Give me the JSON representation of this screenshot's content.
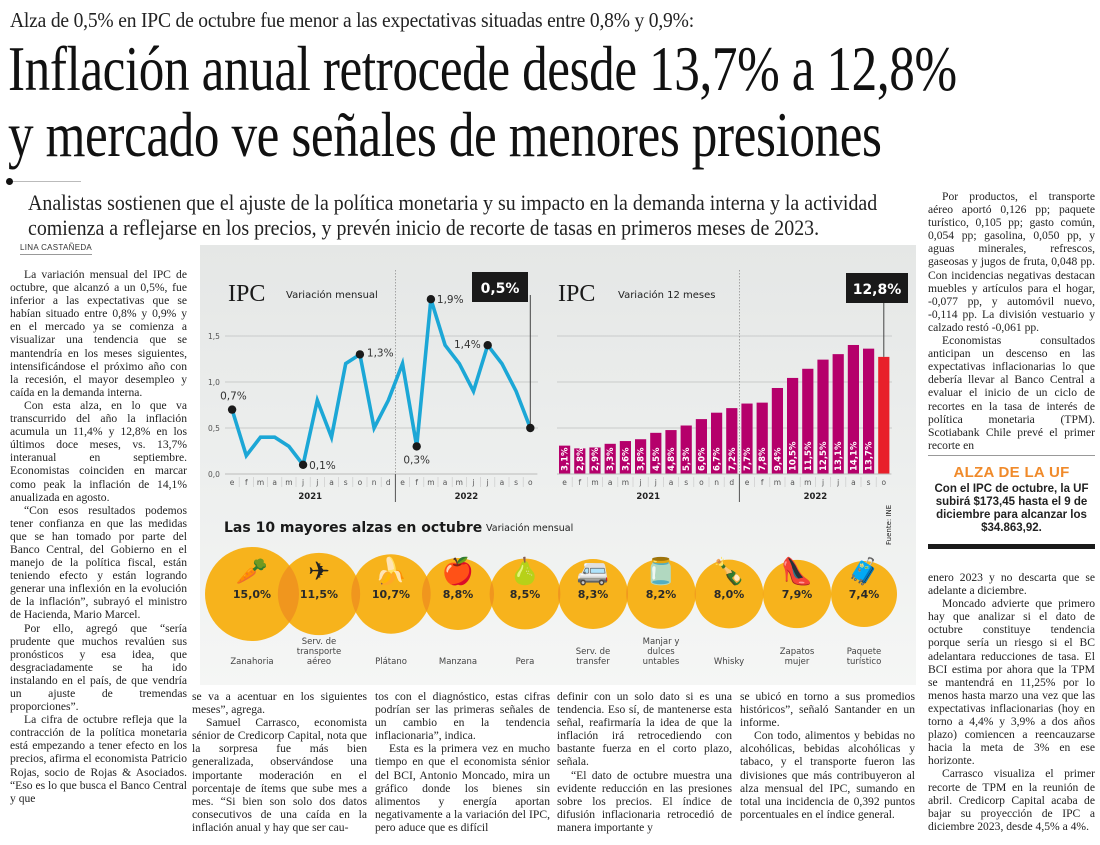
{
  "article": {
    "kicker": "Alza de 0,5% en IPC de octubre fue menor a las expectativas situadas entre 0,8% y 0,9%:",
    "headline": [
      "Inflación anual retrocede desde 13,7% a 12,8%",
      "y mercado ve señales de menores presiones"
    ],
    "deck": [
      "Analistas sostienen que el ajuste de la política monetaria y su impacto en la demanda interna y la actividad",
      "comienza a reflejarse en los precios, y prevén inicio de recorte de tasas en primeros meses de 2023."
    ],
    "byline": "LINA CASTAÑEDA",
    "col_left": [
      "La variación mensual del IPC de octubre, que alcanzó a un 0,5%, fue inferior a las expectativas que se habían situado entre 0,8% y 0,9% y en el mercado ya se comienza a visualizar una tendencia que se mantendría en los meses siguientes, intensificándose el próximo año con la recesión, el mayor desempleo y caída en la demanda interna.",
      "Con esta alza, en lo que va transcurrido del año la inflación acumula un 11,4% y 12,8% en los últimos doce meses, vs. 13,7% interanual en septiembre. Economistas coinciden en marcar como peak la inflación de 14,1% anualizada en agosto.",
      "“Con esos resultados podemos tener confianza en que las medidas que se han tomado por parte del Banco Central, del Gobierno en el manejo de la política fiscal, están teniendo efecto y están logrando generar una inflexión en la evolución de la inflación”, subrayó el ministro de Hacienda, Mario Marcel.",
      "Por ello, agregó que “sería prudente que muchos revalúen sus pronósticos y esa idea, que desgraciadamente se ha ido instalando en el país, de que vendría un ajuste de tremendas proporciones”.",
      "La cifra de octubre refleja que la contracción de la política monetaria está empezando a tener efecto en los precios, afirma el economista Patricio Rojas, socio de Rojas & Asociados. “Eso es lo que busca el Banco Central y que"
    ],
    "col_b1": [
      "se va a acentuar en los siguientes meses”, agrega.",
      "Samuel Carrasco, economista sénior de Credicorp Capital, nota que la sorpresa fue más bien generalizada, observándose una importante moderación en el porcentaje de ítems que sube mes a mes. “Si bien son solo dos datos consecutivos de una caída en la inflación anual y hay que ser cau-"
    ],
    "col_b2": [
      "tos con el diagnóstico, estas cifras podrían ser las primeras señales de un cambio en la tendencia inflacionaria”, indica.",
      "Esta es la primera vez en mucho tiempo en que el economista sénior del BCI, Antonio Moncado, mira un gráfico donde los bienes sin alimentos y energía aportan negativamente a la variación del IPC, pero aduce que es difícil"
    ],
    "col_b3": [
      "definir con un solo dato si es una tendencia. Eso sí, de mantenerse esta señal, reafirmaría la idea de que la inflación irá retrocediendo con bastante fuerza en el corto plazo, señala.",
      "“El dato de octubre muestra una evidente reducción en las presiones sobre los precios. El índice de difusión inflacionaria retrocedió de manera importante y"
    ],
    "col_b4": [
      "se ubicó en torno a sus promedios históricos”, señaló Santander en un informe.",
      "Con todo, alimentos y bebidas no alcohólicas, bebidas alcohólicas y tabaco, y el transporte fueron las divisiones que más contribuyeron al alza mensual del IPC, sumando en total una incidencia de 0,392 puntos porcentuales en el índice general."
    ],
    "col_right_top": [
      "Por productos, el transporte aéreo aportó 0,126 pp; paquete turístico, 0,105 pp; gasto común, 0,054 pp; gasolina, 0,050 pp, y aguas minerales, refrescos, gaseosas y jugos de fruta, 0,048 pp. Con incidencias negativas destacan muebles y artículos para el hogar, -0,077 pp, y automóvil nuevo, -0,114 pp. La división vestuario y calzado restó -0,061 pp.",
      "Economistas consultados anticipan un descenso en las expectativas inflacionarias lo que debería llevar al Banco Central a evaluar el inicio de un ciclo de recortes en la tasa de interés de política monetaria (TPM). Scotiabank Chile prevé el primer recorte en"
    ],
    "col_right_bot": [
      "enero 2023 y no descarta que se adelante a diciembre.",
      "Moncado advierte que primero hay que analizar si el dato de octubre constituye tendencia porque sería un riesgo si el BC adelantara reducciones de tasa. El BCI estima por ahora que la TPM se mantendrá en 11,25% por lo menos hasta marzo una vez que las expectativas inflacionarias (hoy en torno a 4,4% y 3,9% a dos años plazo) comiencen a reencauzarse hacia la meta de 3% en ese horizonte.",
      "Carrasco visualiza el primer recorte de TPM en la reunión de abril. Credicorp Capital acaba de bajar su proyección de IPC a diciembre 2023, desde 4,5% a 4%."
    ],
    "uf_box": {
      "title": "ALZA DE LA UF",
      "text": "Con el IPC de octubre, la UF subirá $173,45 hasta el 9 de diciembre para alcanzar los $34.863,92."
    }
  },
  "colors": {
    "line": "#1ca7d6",
    "bar": "#b5006b",
    "bar_highlight": "#e8202a",
    "circle": "#f7b31c",
    "circle_overlap": "#f0961e",
    "uf_title": "#f08a2a",
    "callout_bg": "#1a1a1a"
  },
  "chart_data": [
    {
      "type": "line",
      "title": "IPC",
      "subtitle": "Variación mensual",
      "callout": "0,5%",
      "categories": [
        "e",
        "f",
        "m",
        "a",
        "m",
        "j",
        "j",
        "a",
        "s",
        "o",
        "n",
        "d",
        "e",
        "f",
        "m",
        "a",
        "m",
        "j",
        "j",
        "a",
        "s",
        "o"
      ],
      "years": [
        {
          "label": "2021",
          "months": 12
        },
        {
          "label": "2022",
          "months": 10
        }
      ],
      "values": [
        0.7,
        0.2,
        0.4,
        0.4,
        0.3,
        0.1,
        0.8,
        0.4,
        1.2,
        1.3,
        0.5,
        0.8,
        1.2,
        0.3,
        1.9,
        1.4,
        1.2,
        0.9,
        1.4,
        1.2,
        0.9,
        0.5
      ],
      "labeled_points": [
        {
          "index": 0,
          "label": "0,7%"
        },
        {
          "index": 5,
          "label": "0,1%"
        },
        {
          "index": 9,
          "label": "1,3%"
        },
        {
          "index": 13,
          "label": "0,3%"
        },
        {
          "index": 14,
          "label": "1,9%"
        },
        {
          "index": 18,
          "label": "1,4%"
        },
        {
          "index": 21,
          "label": ""
        }
      ],
      "yticks": [
        "0,0",
        "0,5",
        "1,0",
        "1,5"
      ],
      "ylim": [
        0,
        1.5
      ],
      "grid": true
    },
    {
      "type": "bar",
      "title": "IPC",
      "subtitle": "Variación 12 meses",
      "callout": "12,8%",
      "categories": [
        "e",
        "f",
        "m",
        "a",
        "m",
        "j",
        "j",
        "a",
        "s",
        "o",
        "n",
        "d",
        "e",
        "f",
        "m",
        "a",
        "m",
        "j",
        "j",
        "a",
        "s",
        "o"
      ],
      "years": [
        {
          "label": "2021",
          "months": 12
        },
        {
          "label": "2022",
          "months": 10
        }
      ],
      "values": [
        3.1,
        2.8,
        2.9,
        3.3,
        3.6,
        3.8,
        4.5,
        4.8,
        5.3,
        6.0,
        6.7,
        7.2,
        7.7,
        7.8,
        9.4,
        10.5,
        11.5,
        12.5,
        13.1,
        14.1,
        13.7,
        12.8
      ],
      "labels": [
        "3,1%",
        "2,8%",
        "2,9%",
        "3,3%",
        "3,6%",
        "3,8%",
        "4,5%",
        "4,8%",
        "5,3%",
        "6,0%",
        "6,7%",
        "7,2%",
        "7,7%",
        "7,8%",
        "9,4%",
        "10,5%",
        "11,5%",
        "12,5%",
        "13,1%",
        "14,1%",
        "13,7%",
        ""
      ],
      "highlight_index": 21,
      "grid": true
    },
    {
      "type": "bubble",
      "title": "Las 10 mayores alzas en octubre",
      "subtitle": "Variación mensual",
      "source": "Fuente: INE",
      "items": [
        {
          "name": "Zanahoria",
          "value": 15.0,
          "label": "15,0%",
          "icon": "carrot-icon",
          "glyph": "🥕"
        },
        {
          "name": "Serv. de transporte aéreo",
          "value": 11.5,
          "label": "11,5%",
          "icon": "airplane-icon",
          "glyph": "✈"
        },
        {
          "name": "Plátano",
          "value": 10.7,
          "label": "10,7%",
          "icon": "banana-icon",
          "glyph": "🍌"
        },
        {
          "name": "Manzana",
          "value": 8.8,
          "label": "8,8%",
          "icon": "apple-icon",
          "glyph": "🍎"
        },
        {
          "name": "Pera",
          "value": 8.5,
          "label": "8,5%",
          "icon": "pear-icon",
          "glyph": "🍐"
        },
        {
          "name": "Serv. de transfer",
          "value": 8.3,
          "label": "8,3%",
          "icon": "van-icon",
          "glyph": "🚐"
        },
        {
          "name": "Manjar y dulces untables",
          "value": 8.2,
          "label": "8,2%",
          "icon": "jar-icon",
          "glyph": "🫙"
        },
        {
          "name": "Whisky",
          "value": 8.0,
          "label": "8,0%",
          "icon": "bottle-icon",
          "glyph": "🍾"
        },
        {
          "name": "Zapatos mujer",
          "value": 7.9,
          "label": "7,9%",
          "icon": "high-heel-icon",
          "glyph": "👠"
        },
        {
          "name": "Paquete turístico",
          "value": 7.4,
          "label": "7,4%",
          "icon": "traveler-icon",
          "glyph": "🧳"
        }
      ]
    }
  ]
}
